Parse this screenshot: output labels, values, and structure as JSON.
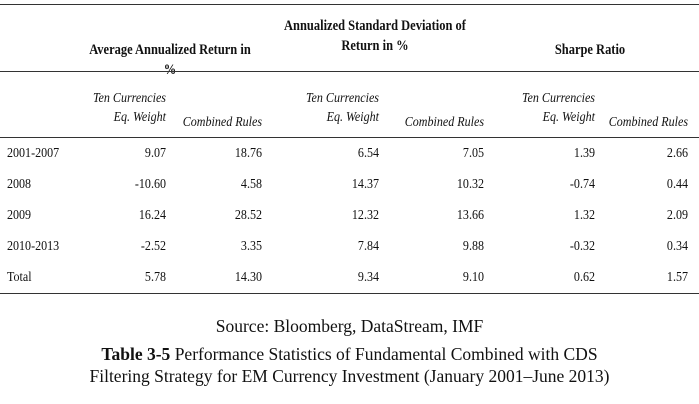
{
  "table": {
    "group_headers": [
      {
        "line1": "Average Annualized Return in %",
        "line2": ""
      },
      {
        "line1": "Annualized Standard Deviation of",
        "line2": "Return in %"
      },
      {
        "line1": "Sharpe Ratio",
        "line2": ""
      }
    ],
    "sub_headers": [
      {
        "line1": "Ten Currencies",
        "line2": "Eq. Weight"
      },
      {
        "line1": "Combined Rules",
        "line2": ""
      },
      {
        "line1": "Ten Currencies",
        "line2": "Eq. Weight"
      },
      {
        "line1": "Combined Rules",
        "line2": ""
      },
      {
        "line1": "Ten Currencies",
        "line2": "Eq. Weight"
      },
      {
        "line1": "Combined Rules",
        "line2": ""
      }
    ],
    "rows": [
      {
        "label": "2001-2007",
        "values": [
          "9.07",
          "18.76",
          "6.54",
          "7.05",
          "1.39",
          "2.66"
        ]
      },
      {
        "label": "2008",
        "values": [
          "-10.60",
          "4.58",
          "14.37",
          "10.32",
          "-0.74",
          "0.44"
        ]
      },
      {
        "label": "2009",
        "values": [
          "16.24",
          "28.52",
          "12.32",
          "13.66",
          "1.32",
          "2.09"
        ]
      },
      {
        "label": "2010-2013",
        "values": [
          "-2.52",
          "3.35",
          "7.84",
          "9.88",
          "-0.32",
          "0.34"
        ]
      },
      {
        "label": "Total",
        "values": [
          "5.78",
          "14.30",
          "9.34",
          "9.10",
          "0.62",
          "1.57"
        ]
      }
    ]
  },
  "source": "Source: Bloomberg, DataStream, IMF",
  "caption": {
    "label": "Table 3-5",
    "line1": " Performance Statistics of Fundamental Combined with CDS",
    "line2": "Filtering Strategy for EM Currency Investment (January 2001–June 2013)"
  }
}
